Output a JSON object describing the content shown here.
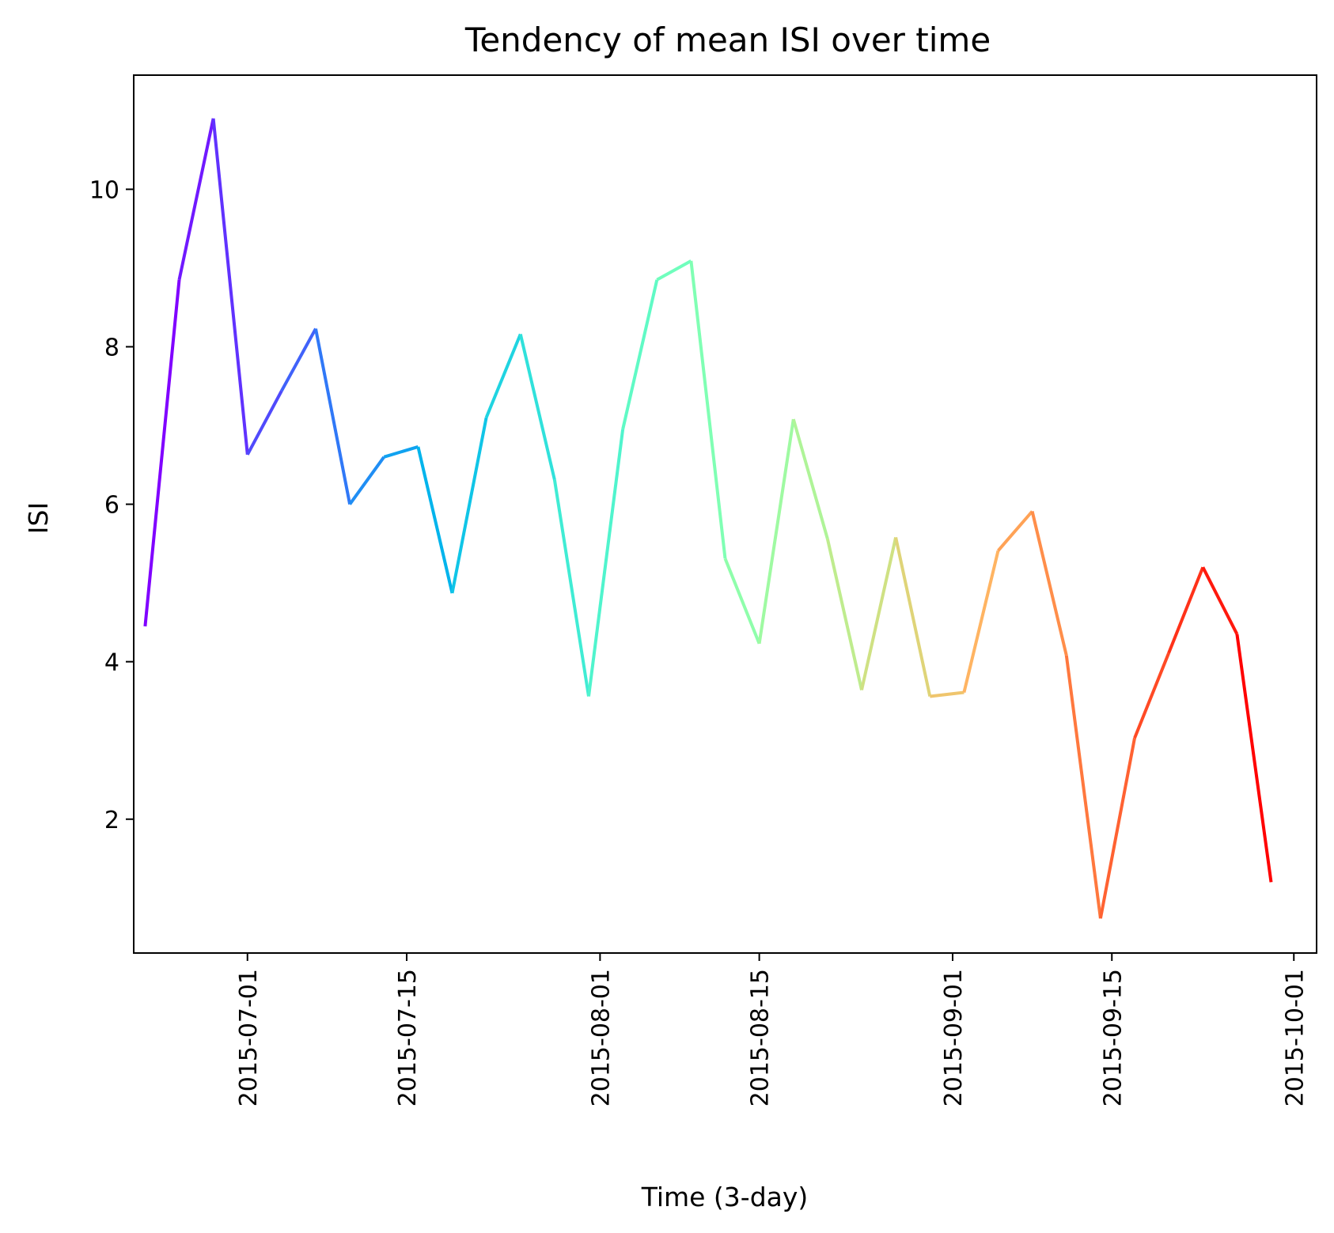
{
  "chart_data": {
    "type": "line",
    "title": "Tendency of mean ISI over time",
    "xlabel": "Time (3-day)",
    "ylabel": "ISI",
    "x_type": "date",
    "xlim": [
      "2015-06-21",
      "2015-10-03"
    ],
    "ylim": [
      0.3,
      11.45
    ],
    "x_ticks": [
      "2015-07-01",
      "2015-07-15",
      "2015-08-01",
      "2015-08-15",
      "2015-09-01",
      "2015-09-15",
      "2015-10-01"
    ],
    "y_ticks": [
      2,
      4,
      6,
      8,
      10
    ],
    "grid": false,
    "legend": "none",
    "colormap": "rainbow",
    "color_start": "#8000ff",
    "color_end": "#ff0000",
    "series": [
      {
        "x": [
          "2015-06-22",
          "2015-06-25",
          "2015-06-28",
          "2015-07-01",
          "2015-07-04",
          "2015-07-07",
          "2015-07-10",
          "2015-07-13",
          "2015-07-16",
          "2015-07-19",
          "2015-07-22",
          "2015-07-25",
          "2015-07-28",
          "2015-07-31",
          "2015-08-03",
          "2015-08-06",
          "2015-08-09",
          "2015-08-12",
          "2015-08-15",
          "2015-08-18",
          "2015-08-21",
          "2015-08-24",
          "2015-08-27",
          "2015-08-30",
          "2015-09-02",
          "2015-09-05",
          "2015-09-08",
          "2015-09-11",
          "2015-09-14",
          "2015-09-17",
          "2015-09-20",
          "2015-09-23",
          "2015-09-26",
          "2015-09-29"
        ],
        "y": [
          4.45,
          8.85,
          10.9,
          6.63,
          7.44,
          8.23,
          6.0,
          6.6,
          6.73,
          4.87,
          7.1,
          8.16,
          6.31,
          3.56,
          6.95,
          8.85,
          9.09,
          5.31,
          4.23,
          7.08,
          5.56,
          3.64,
          5.58,
          3.56,
          3.61,
          5.41,
          5.91,
          4.08,
          0.74,
          3.03,
          4.11,
          5.2,
          4.35,
          1.2
        ]
      }
    ]
  }
}
